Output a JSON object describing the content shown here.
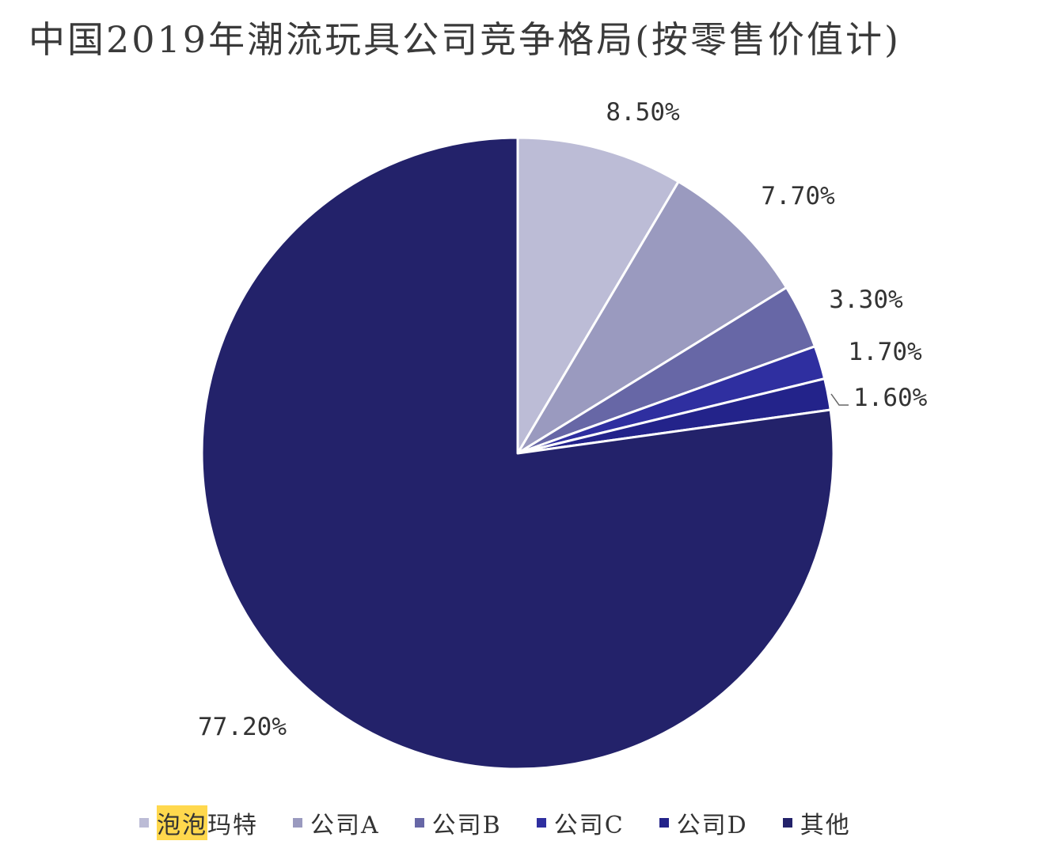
{
  "chart_data": {
    "type": "pie",
    "title": "中国2019年潮流玩具公司竞争格局(按零售价值计)",
    "categories": [
      "泡泡玛特",
      "公司A",
      "公司B",
      "公司C",
      "公司D",
      "其他"
    ],
    "values": [
      8.5,
      7.7,
      3.3,
      1.7,
      1.6,
      77.2
    ],
    "data_labels": [
      "8.50%",
      "7.70%",
      "3.30%",
      "1.70%",
      "1.60%",
      "77.20%"
    ],
    "colors": [
      "#bcbcd6",
      "#9a9abf",
      "#6767a6",
      "#2f2fa0",
      "#23238a",
      "#23226a"
    ],
    "start_angle_deg": 0,
    "direction": "clockwise",
    "legend_position": "bottom",
    "highlighted_legend_text": "泡泡",
    "legend_highlight_color": "#ffd84d"
  }
}
